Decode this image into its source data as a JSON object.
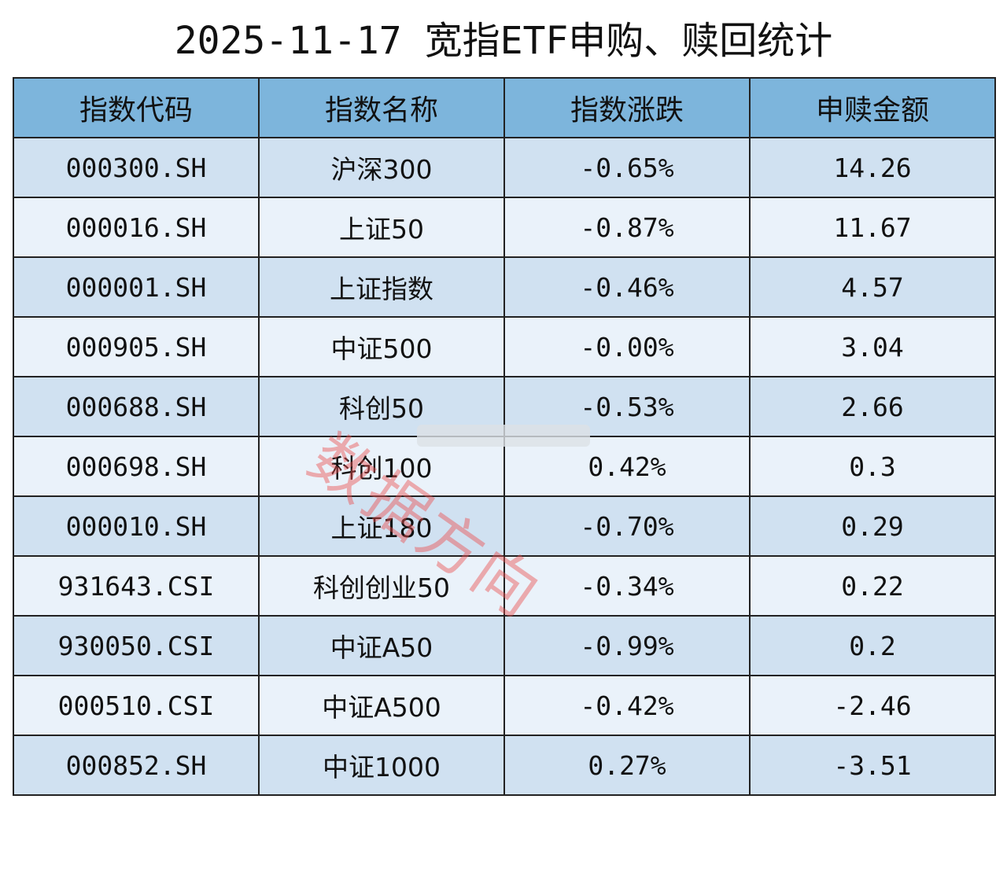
{
  "title": "2025-11-17 宽指ETF申购、赎回统计",
  "watermark": "数据方向",
  "table": {
    "header": [
      "指数代码",
      "指数名称",
      "指数涨跌",
      "申赎金额"
    ],
    "rows": [
      [
        "000300.SH",
        "沪深300",
        "-0.65%",
        "14.26"
      ],
      [
        "000016.SH",
        "上证50",
        "-0.87%",
        "11.67"
      ],
      [
        "000001.SH",
        "上证指数",
        "-0.46%",
        "4.57"
      ],
      [
        "000905.SH",
        "中证500",
        "-0.00%",
        "3.04"
      ],
      [
        "000688.SH",
        "科创50",
        "-0.53%",
        "2.66"
      ],
      [
        "000698.SH",
        "科创100",
        "0.42%",
        "0.3"
      ],
      [
        "000010.SH",
        "上证180",
        "-0.70%",
        "0.29"
      ],
      [
        "931643.CSI",
        "科创创业50",
        "-0.34%",
        "0.22"
      ],
      [
        "930050.CSI",
        "中证A50",
        "-0.99%",
        "0.2"
      ],
      [
        "000510.CSI",
        "中证A500",
        "-0.42%",
        "-2.46"
      ],
      [
        "000852.SH",
        "中证1000",
        "0.27%",
        "-3.51"
      ]
    ]
  }
}
